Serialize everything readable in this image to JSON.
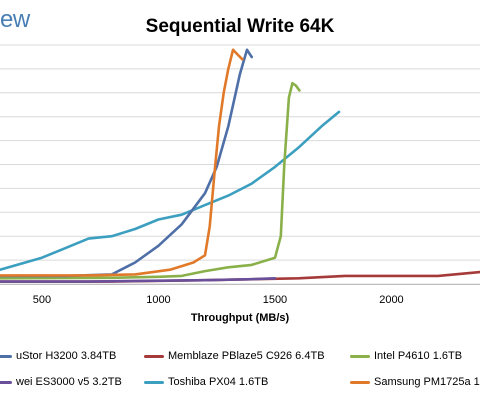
{
  "logo_text": "ew",
  "chart_data": {
    "type": "line",
    "title": "Sequential Write 64K",
    "xlabel": "Throughput (MB/s)",
    "ylabel": "",
    "xlim": [
      320,
      2380
    ],
    "ylim": [
      0,
      500
    ],
    "x_ticks": [
      500,
      1000,
      1500,
      2000
    ],
    "y_ticks": [
      0,
      50,
      100,
      150,
      200,
      250,
      300,
      350,
      400,
      450,
      500
    ],
    "grid": "horizontal",
    "legend_position": "bottom",
    "series": [
      {
        "name": "uStor H3200 3.84TB",
        "color": "#4f6fa8",
        "x": [
          320,
          600,
          800,
          900,
          1000,
          1100,
          1200,
          1250,
          1300,
          1350,
          1380,
          1400
        ],
        "y": [
          17,
          17,
          20,
          45,
          80,
          125,
          190,
          245,
          330,
          440,
          490,
          475
        ]
      },
      {
        "name": "Memblaze PBlaze5 C926 6.4TB",
        "color": "#a63a3a",
        "x": [
          320,
          800,
          1200,
          1600,
          1800,
          2000,
          2200,
          2380
        ],
        "y": [
          5,
          5,
          8,
          12,
          17,
          17,
          17,
          25
        ]
      },
      {
        "name": "Intel P4610 1.6TB",
        "color": "#8ab04a",
        "x": [
          320,
          800,
          1000,
          1100,
          1200,
          1300,
          1400,
          1500,
          1525,
          1540,
          1560,
          1575,
          1590,
          1605
        ],
        "y": [
          12,
          13,
          15,
          17,
          27,
          35,
          40,
          55,
          100,
          250,
          390,
          420,
          415,
          405
        ]
      },
      {
        "name": "wei ES3000 v5 3.2TB",
        "color": "#6a4f9a",
        "x": [
          320,
          700,
          1000,
          1200,
          1400,
          1500
        ],
        "y": [
          5,
          5,
          7,
          8,
          10,
          12
        ]
      },
      {
        "name": "Toshiba PX04 1.6TB",
        "color": "#3c9fc0",
        "x": [
          320,
          500,
          600,
          700,
          800,
          900,
          1000,
          1100,
          1200,
          1300,
          1400,
          1500,
          1600,
          1700,
          1775
        ],
        "y": [
          30,
          55,
          75,
          95,
          100,
          115,
          135,
          145,
          165,
          185,
          210,
          245,
          285,
          330,
          360
        ]
      },
      {
        "name": "Samsung PM1725a 1",
        "color": "#e07a2a",
        "x": [
          320,
          700,
          900,
          1050,
          1150,
          1200,
          1220,
          1240,
          1260,
          1280,
          1300,
          1320,
          1340,
          1360
        ],
        "y": [
          18,
          18,
          20,
          30,
          45,
          60,
          120,
          230,
          330,
          400,
          450,
          490,
          480,
          470
        ]
      }
    ]
  }
}
